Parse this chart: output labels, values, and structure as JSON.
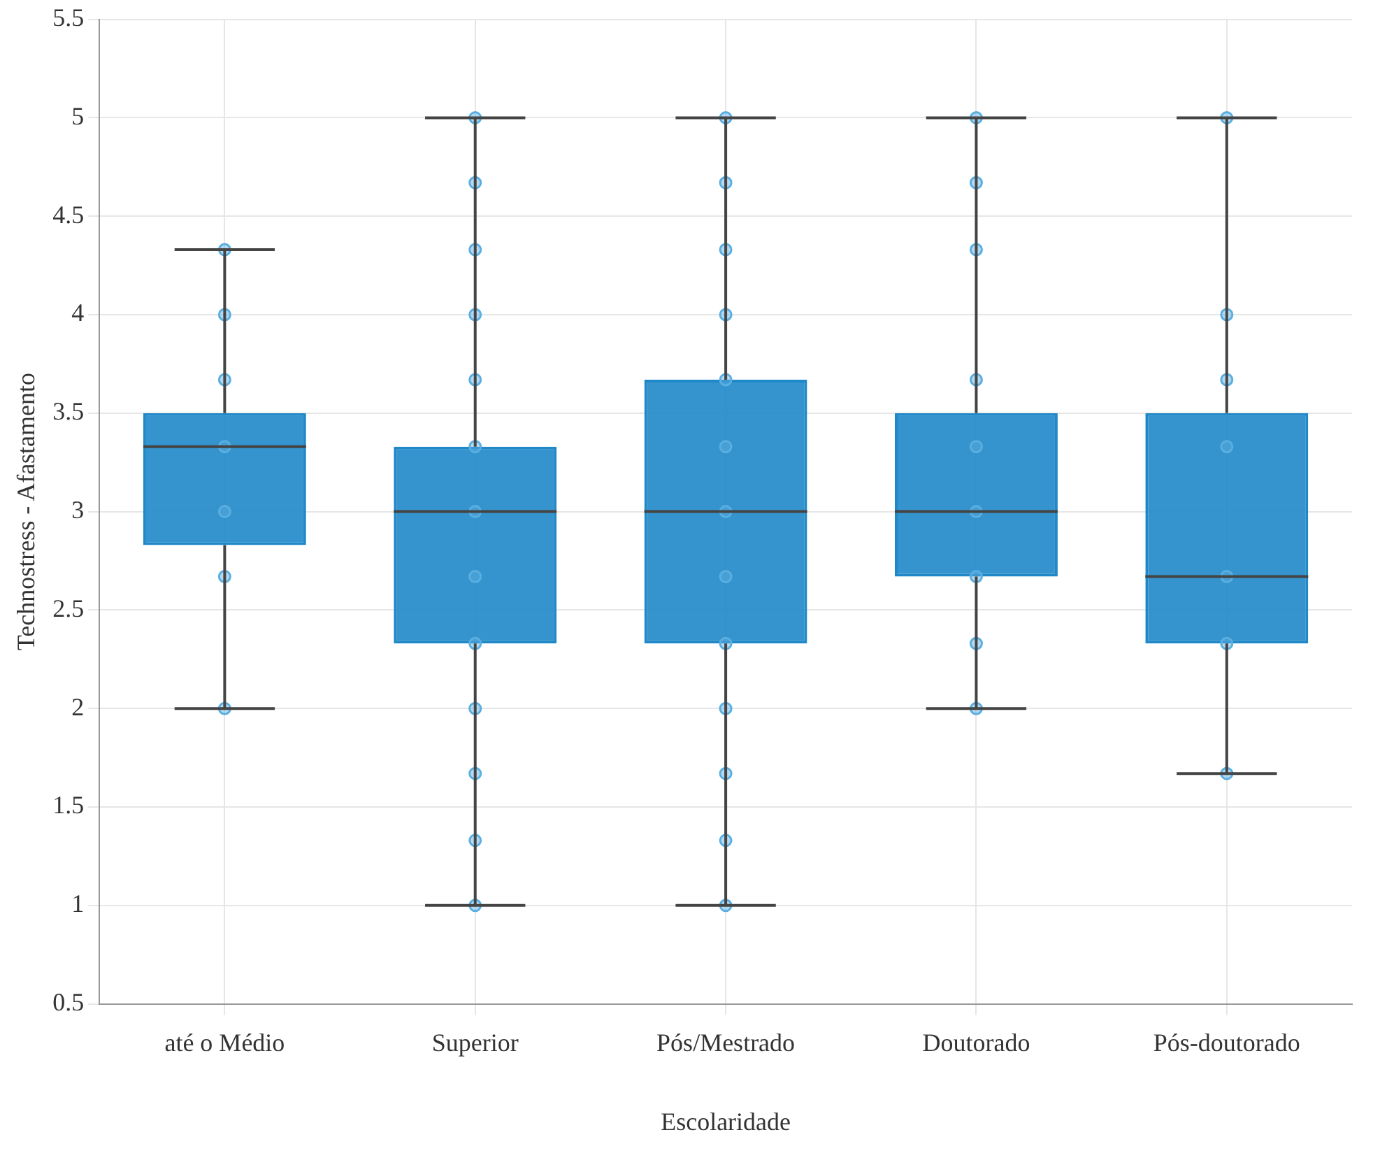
{
  "chart_data": {
    "type": "box",
    "xlabel": "Escolaridade",
    "ylabel": "Technostress - Afastamento",
    "categories": [
      "até o Médio",
      "Superior",
      "Pós/Mestrado",
      "Doutorado",
      "Pós-doutorado"
    ],
    "color": "#1f88c8",
    "boxes": [
      {
        "low": 2,
        "q1": 2.83,
        "median": 3.33,
        "q3": 3.5,
        "high": 4.33
      },
      {
        "low": 1,
        "q1": 2.33,
        "median": 3,
        "q3": 3.33,
        "high": 5
      },
      {
        "low": 1,
        "q1": 2.33,
        "median": 3,
        "q3": 3.67,
        "high": 5
      },
      {
        "low": 2,
        "q1": 2.67,
        "median": 3,
        "q3": 3.5,
        "high": 5
      },
      {
        "low": 1.67,
        "q1": 2.33,
        "median": 2.67,
        "q3": 3.5,
        "high": 5
      }
    ],
    "series": [
      {
        "type": "scatter",
        "color": "#5aaee0",
        "x": [
          "até o Médio",
          "até o Médio",
          "até o Médio",
          "até o Médio",
          "até o Médio",
          "até o Médio",
          "até o Médio",
          "Superior",
          "Superior",
          "Superior",
          "Superior",
          "Superior",
          "Superior",
          "Superior",
          "Superior",
          "Superior",
          "Superior",
          "Superior",
          "Superior",
          "Superior",
          "Pós/Mestrado",
          "Pós/Mestrado",
          "Pós/Mestrado",
          "Pós/Mestrado",
          "Pós/Mestrado",
          "Pós/Mestrado",
          "Pós/Mestrado",
          "Pós/Mestrado",
          "Pós/Mestrado",
          "Pós/Mestrado",
          "Pós/Mestrado",
          "Pós/Mestrado",
          "Pós/Mestrado",
          "Doutorado",
          "Doutorado",
          "Doutorado",
          "Doutorado",
          "Doutorado",
          "Doutorado",
          "Doutorado",
          "Doutorado",
          "Doutorado",
          "Pós-doutorado",
          "Pós-doutorado",
          "Pós-doutorado",
          "Pós-doutorado",
          "Pós-doutorado",
          "Pós-doutorado",
          "Pós-doutorado"
        ],
        "values": [
          2,
          2.67,
          3,
          3.33,
          3.67,
          4,
          4.33,
          1,
          1.33,
          1.67,
          2,
          2.33,
          2.67,
          3,
          3.33,
          3.67,
          4,
          4.33,
          4.67,
          5,
          1,
          1.33,
          1.67,
          2,
          2.33,
          2.67,
          3,
          3.33,
          3.67,
          4,
          4.33,
          4.67,
          5,
          2,
          2.33,
          2.67,
          3,
          3.33,
          3.67,
          4.33,
          4.67,
          5,
          1.67,
          2.33,
          2.67,
          3.33,
          3.67,
          4,
          5
        ]
      }
    ],
    "ylim": [
      0.5,
      5.5
    ],
    "yticks": [
      0.5,
      1,
      1.5,
      2,
      2.5,
      3,
      3.5,
      4,
      4.5,
      5,
      5.5
    ],
    "grid": true,
    "legend": false,
    "marker": "circle"
  }
}
